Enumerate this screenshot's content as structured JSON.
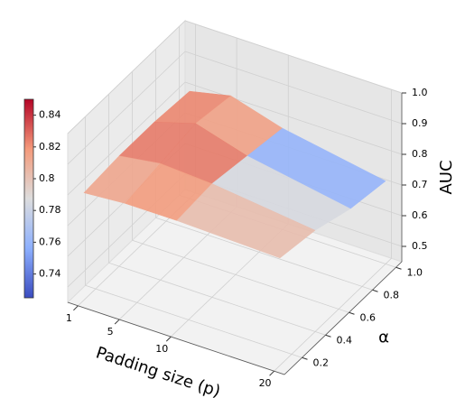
{
  "chart_data": {
    "type": "surface3d",
    "x_label": "Padding size (p)",
    "y_label": "α",
    "z_label": "AUC",
    "x": [
      1,
      5,
      10,
      20
    ],
    "y": [
      0.1,
      0.4,
      0.7,
      1.0
    ],
    "z": [
      [
        0.8,
        0.81,
        0.81,
        0.8
      ],
      [
        0.81,
        0.83,
        0.82,
        0.78
      ],
      [
        0.81,
        0.85,
        0.8,
        0.74
      ],
      [
        0.8,
        0.83,
        0.78,
        0.72
      ]
    ],
    "xlim": [
      0,
      21
    ],
    "ylim": [
      0.05,
      1.05
    ],
    "zlim": [
      0.45,
      1.0
    ],
    "xticks": [
      1,
      5,
      10,
      20
    ],
    "yticks": [
      0.2,
      0.4,
      0.6,
      0.8,
      {
        "value": 1.0,
        "label": "1.0"
      }
    ],
    "zticks": [
      0.5,
      0.6,
      0.7,
      0.8,
      0.9,
      {
        "value": 1.0,
        "label": "1.0"
      }
    ],
    "colormap": "coolwarm",
    "clim": [
      0.725,
      0.85
    ],
    "cticks": [
      0.74,
      0.76,
      0.78,
      0.8,
      0.82,
      0.84
    ]
  }
}
